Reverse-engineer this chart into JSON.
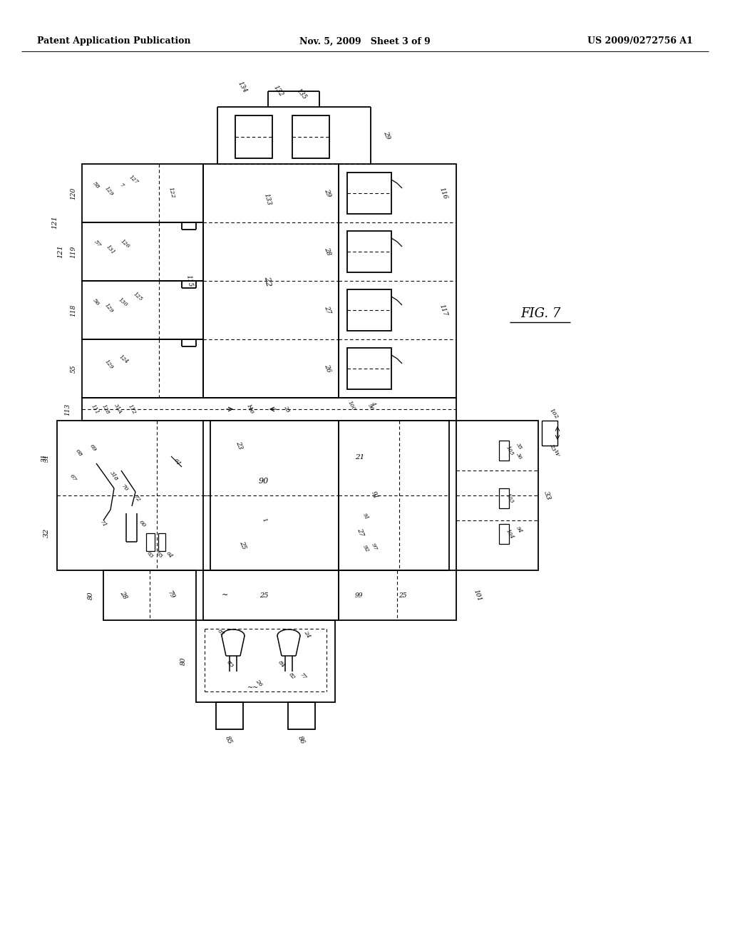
{
  "title_left": "Patent Application Publication",
  "title_center": "Nov. 5, 2009   Sheet 3 of 9",
  "title_right": "US 2009/0272756 A1",
  "fig_label": "FIG. 7",
  "background": "#ffffff",
  "fig_width": 10.24,
  "fig_height": 13.2
}
